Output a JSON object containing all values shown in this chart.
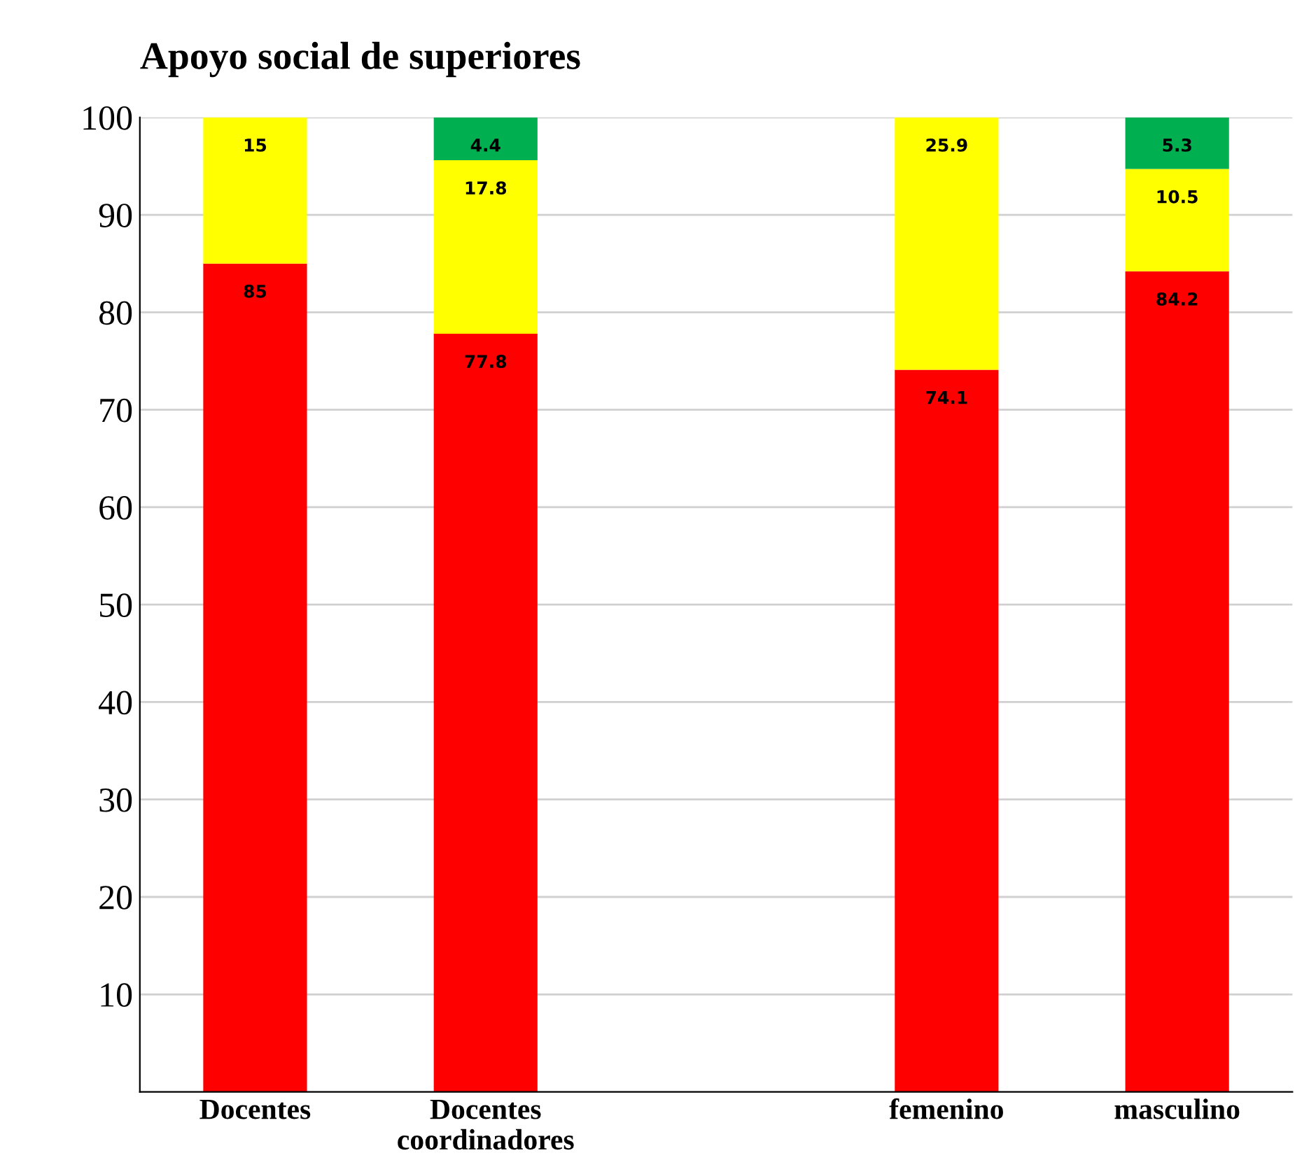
{
  "chart_data": {
    "type": "bar",
    "title": "Apoyo social de superiores",
    "stacked": true,
    "data_labels": true,
    "categories": [
      "Docentes",
      "Docentes\ncoordinadores",
      null,
      "femenino",
      "masculino"
    ],
    "series": [
      {
        "color": "#ff0000",
        "values": [
          85,
          77.8,
          null,
          74.1,
          84.2
        ]
      },
      {
        "color": "#ffff00",
        "values": [
          15,
          17.8,
          null,
          25.9,
          10.5
        ]
      },
      {
        "color": "#00b050",
        "values": [
          null,
          4.4,
          null,
          null,
          5.3
        ]
      }
    ],
    "ylim": [
      0,
      100
    ],
    "yticks": [
      10,
      20,
      30,
      40,
      50,
      60,
      70,
      80,
      90,
      100
    ],
    "grid": "y",
    "legend": false
  }
}
